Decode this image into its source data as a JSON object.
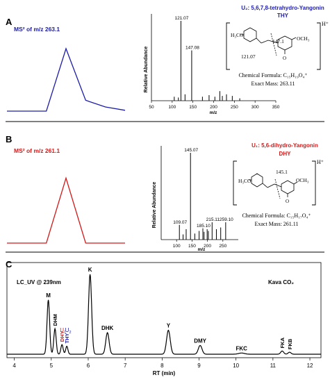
{
  "panels": {
    "a": {
      "letter": "A",
      "ms_label": "MS² of m/z 263.1",
      "compound_title": "U₂: 5,6,7,8-tetrahydro-Yangonin",
      "compound_abbr": "THY",
      "structure": {
        "h3co": "H₃CO",
        "och3": "OCH₃",
        "o": "O",
        "hplus": "H⁺",
        "frag_top": "147.1",
        "frag_bottom": "121.07"
      },
      "formula": "Chemical Formula: C₁₅H₁₉O₄⁺",
      "mass": "Exact Mass: 263.11"
    },
    "b": {
      "letter": "B",
      "ms_label": "MS² of m/z 261.1",
      "compound_title": "U₁: 5,6-dihydro-Yangonin",
      "compound_abbr": "DHY",
      "structure": {
        "h3co": "H₃CO",
        "och3": "OCH₃",
        "o": "O",
        "hplus": "H⁺",
        "frag_top": "145.1"
      },
      "formula": "Chemical Formula: C₁₅H₁₇O₄⁺",
      "mass": "Exact Mass: 261.11"
    },
    "c": {
      "letter": "C",
      "method": "LC_UV @ 239nm",
      "sample": "Kava CO₂"
    }
  },
  "colors": {
    "blue": "#1c1ca8",
    "red": "#d11a1a",
    "black": "#000000"
  },
  "chart_data": [
    {
      "type": "line",
      "id": "a-trace",
      "color": "blue",
      "x": [
        0,
        1,
        2,
        3,
        4,
        5,
        6
      ],
      "y": [
        0,
        0,
        0,
        0.75,
        0.13,
        0.05,
        0.01
      ]
    },
    {
      "type": "bar",
      "id": "a-ms2",
      "ylabel": "Relative Abundance",
      "xlabel": "m/z",
      "xlim": [
        50,
        350
      ],
      "xticks": [
        50,
        100,
        150,
        200,
        250,
        300,
        350
      ],
      "peaks": [
        {
          "mz": 105,
          "rel": 0.05
        },
        {
          "mz": 115,
          "rel": 0.04
        },
        {
          "mz": 121.07,
          "rel": 1.0,
          "label": "121.07"
        },
        {
          "mz": 131,
          "rel": 0.08
        },
        {
          "mz": 147.08,
          "rel": 0.63,
          "label": "147.08"
        },
        {
          "mz": 173,
          "rel": 0.05
        },
        {
          "mz": 189,
          "rel": 0.07
        },
        {
          "mz": 203,
          "rel": 0.05
        },
        {
          "mz": 215,
          "rel": 0.12
        },
        {
          "mz": 221,
          "rel": 0.06
        },
        {
          "mz": 231,
          "rel": 0.08
        },
        {
          "mz": 245,
          "rel": 0.06
        },
        {
          "mz": 263,
          "rel": 0.03
        }
      ]
    },
    {
      "type": "line",
      "id": "b-trace",
      "color": "red",
      "x": [
        0,
        1,
        2,
        3,
        4,
        5,
        6
      ],
      "y": [
        0,
        0,
        0,
        0.72,
        0,
        0,
        0
      ]
    },
    {
      "type": "bar",
      "id": "b-ms2",
      "ylabel": "Relative Abundance",
      "xlabel": "m/z",
      "xlim": [
        50,
        300
      ],
      "xticks": [
        100,
        150,
        200,
        250
      ],
      "peaks": [
        {
          "mz": 109.07,
          "rel": 0.17,
          "label": "109.07"
        },
        {
          "mz": 121,
          "rel": 0.06
        },
        {
          "mz": 131,
          "rel": 0.12
        },
        {
          "mz": 145.07,
          "rel": 1.0,
          "label": "145.07"
        },
        {
          "mz": 159,
          "rel": 0.07
        },
        {
          "mz": 173,
          "rel": 0.1
        },
        {
          "mz": 185.1,
          "rel": 0.13,
          "label": "185.10"
        },
        {
          "mz": 189,
          "rel": 0.09
        },
        {
          "mz": 199,
          "rel": 0.12
        },
        {
          "mz": 203,
          "rel": 0.1
        },
        {
          "mz": 215.11,
          "rel": 0.2,
          "label": "215.11"
        },
        {
          "mz": 229,
          "rel": 0.12
        },
        {
          "mz": 243,
          "rel": 0.14
        },
        {
          "mz": 259.1,
          "rel": 0.2,
          "label": "259.10"
        }
      ]
    },
    {
      "type": "line",
      "id": "c-chromatogram",
      "xlabel": "RT (min)",
      "xlim": [
        3.8,
        12.3
      ],
      "xticks": [
        4,
        5,
        6,
        7,
        8,
        9,
        10,
        11,
        12
      ],
      "peaks": [
        {
          "rt": 4.92,
          "h": 0.68,
          "w": 0.035,
          "label": "M",
          "color": "black"
        },
        {
          "rt": 5.1,
          "h": 0.32,
          "w": 0.032,
          "label": "DHM",
          "color": "black",
          "vertical": true
        },
        {
          "rt": 5.29,
          "h": 0.12,
          "w": 0.03,
          "label": "DHY",
          "color": "red",
          "vertical": true
        },
        {
          "rt": 5.42,
          "h": 0.1,
          "w": 0.03,
          "label": "THY",
          "color": "blue",
          "vertical": true
        },
        {
          "rt": 6.05,
          "h": 1.0,
          "w": 0.042,
          "label": "K",
          "color": "black"
        },
        {
          "rt": 6.52,
          "h": 0.27,
          "w": 0.045,
          "label": "DHK",
          "color": "black"
        },
        {
          "rt": 8.17,
          "h": 0.3,
          "w": 0.05,
          "label": "Y",
          "color": "black"
        },
        {
          "rt": 9.03,
          "h": 0.11,
          "w": 0.05,
          "label": "DMY",
          "color": "black"
        },
        {
          "rt": 10.15,
          "h": 0.015,
          "w": 0.08,
          "label": "FKC",
          "color": "black"
        },
        {
          "rt": 11.25,
          "h": 0.04,
          "w": 0.04,
          "label": "FKA",
          "color": "black",
          "vertical": true
        },
        {
          "rt": 11.45,
          "h": 0.025,
          "w": 0.04,
          "label": "FKB",
          "color": "black",
          "vertical": true
        }
      ],
      "subscript_labels": [
        {
          "text": "U",
          "sub": "1",
          "color": "red"
        },
        {
          "text": "U",
          "sub": "2",
          "color": "blue"
        }
      ]
    }
  ]
}
